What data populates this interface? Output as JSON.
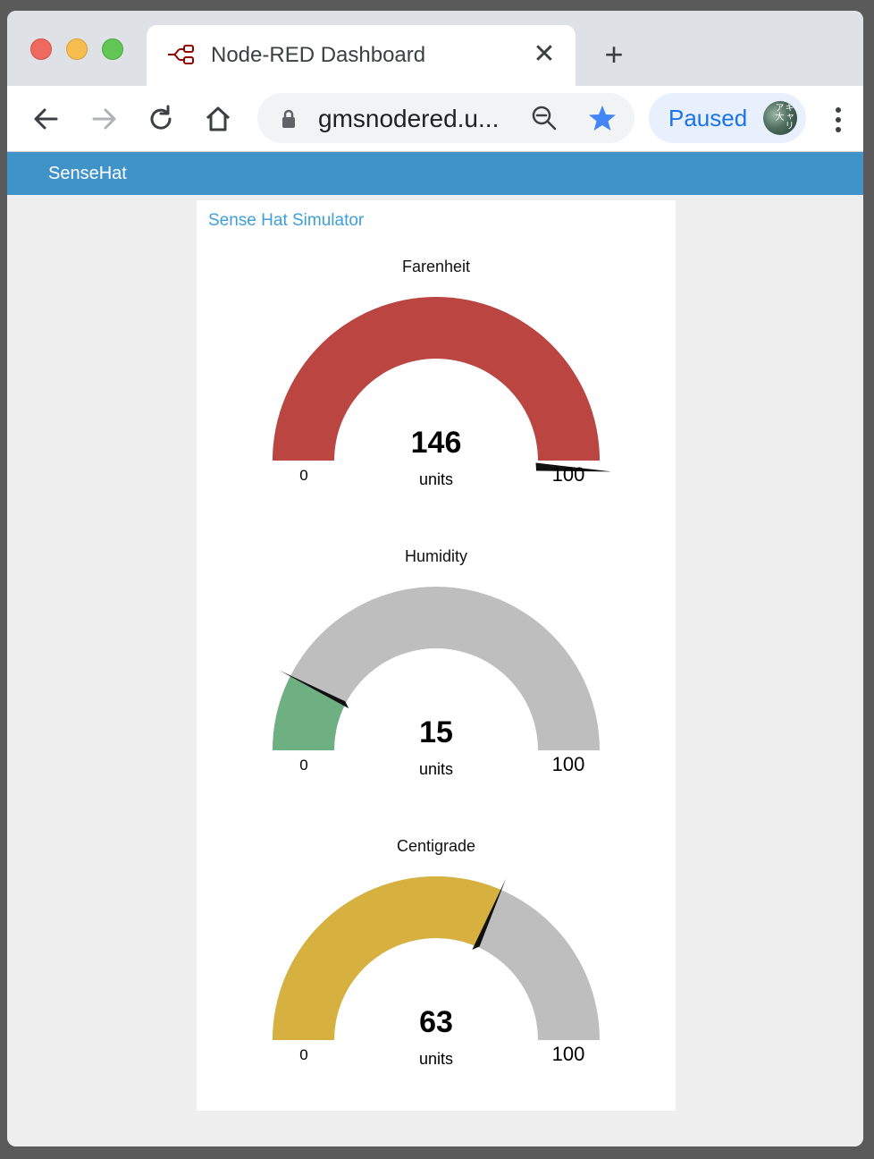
{
  "browser": {
    "tab_title": "Node-RED Dashboard",
    "tab_close": "✕",
    "new_tab": "+",
    "url": "gmsnodered.u...",
    "profile_status": "Paused",
    "avatar_text": "キャリア大"
  },
  "dashboard": {
    "header_title": "SenseHat",
    "group_title": "Sense Hat Simulator",
    "gauges": [
      {
        "title": "Farenheit",
        "value": "146",
        "units": "units",
        "min": "0",
        "max": "100",
        "level": 146,
        "range": [
          0,
          100
        ],
        "fill_color": "#bb4540",
        "track_color": "#bebebe"
      },
      {
        "title": "Humidity",
        "value": "15",
        "units": "units",
        "min": "0",
        "max": "100",
        "level": 15,
        "range": [
          0,
          100
        ],
        "fill_color": "#6fb083",
        "track_color": "#bebebe"
      },
      {
        "title": "Centigrade",
        "value": "63",
        "units": "units",
        "min": "0",
        "max": "100",
        "level": 63,
        "range": [
          0,
          100
        ],
        "fill_color": "#d7b13f",
        "track_color": "#bebebe"
      }
    ]
  },
  "colors": {
    "header_bar": "#3f93c9",
    "group_title": "#3f9fd8",
    "accent": "#1a73e8"
  }
}
